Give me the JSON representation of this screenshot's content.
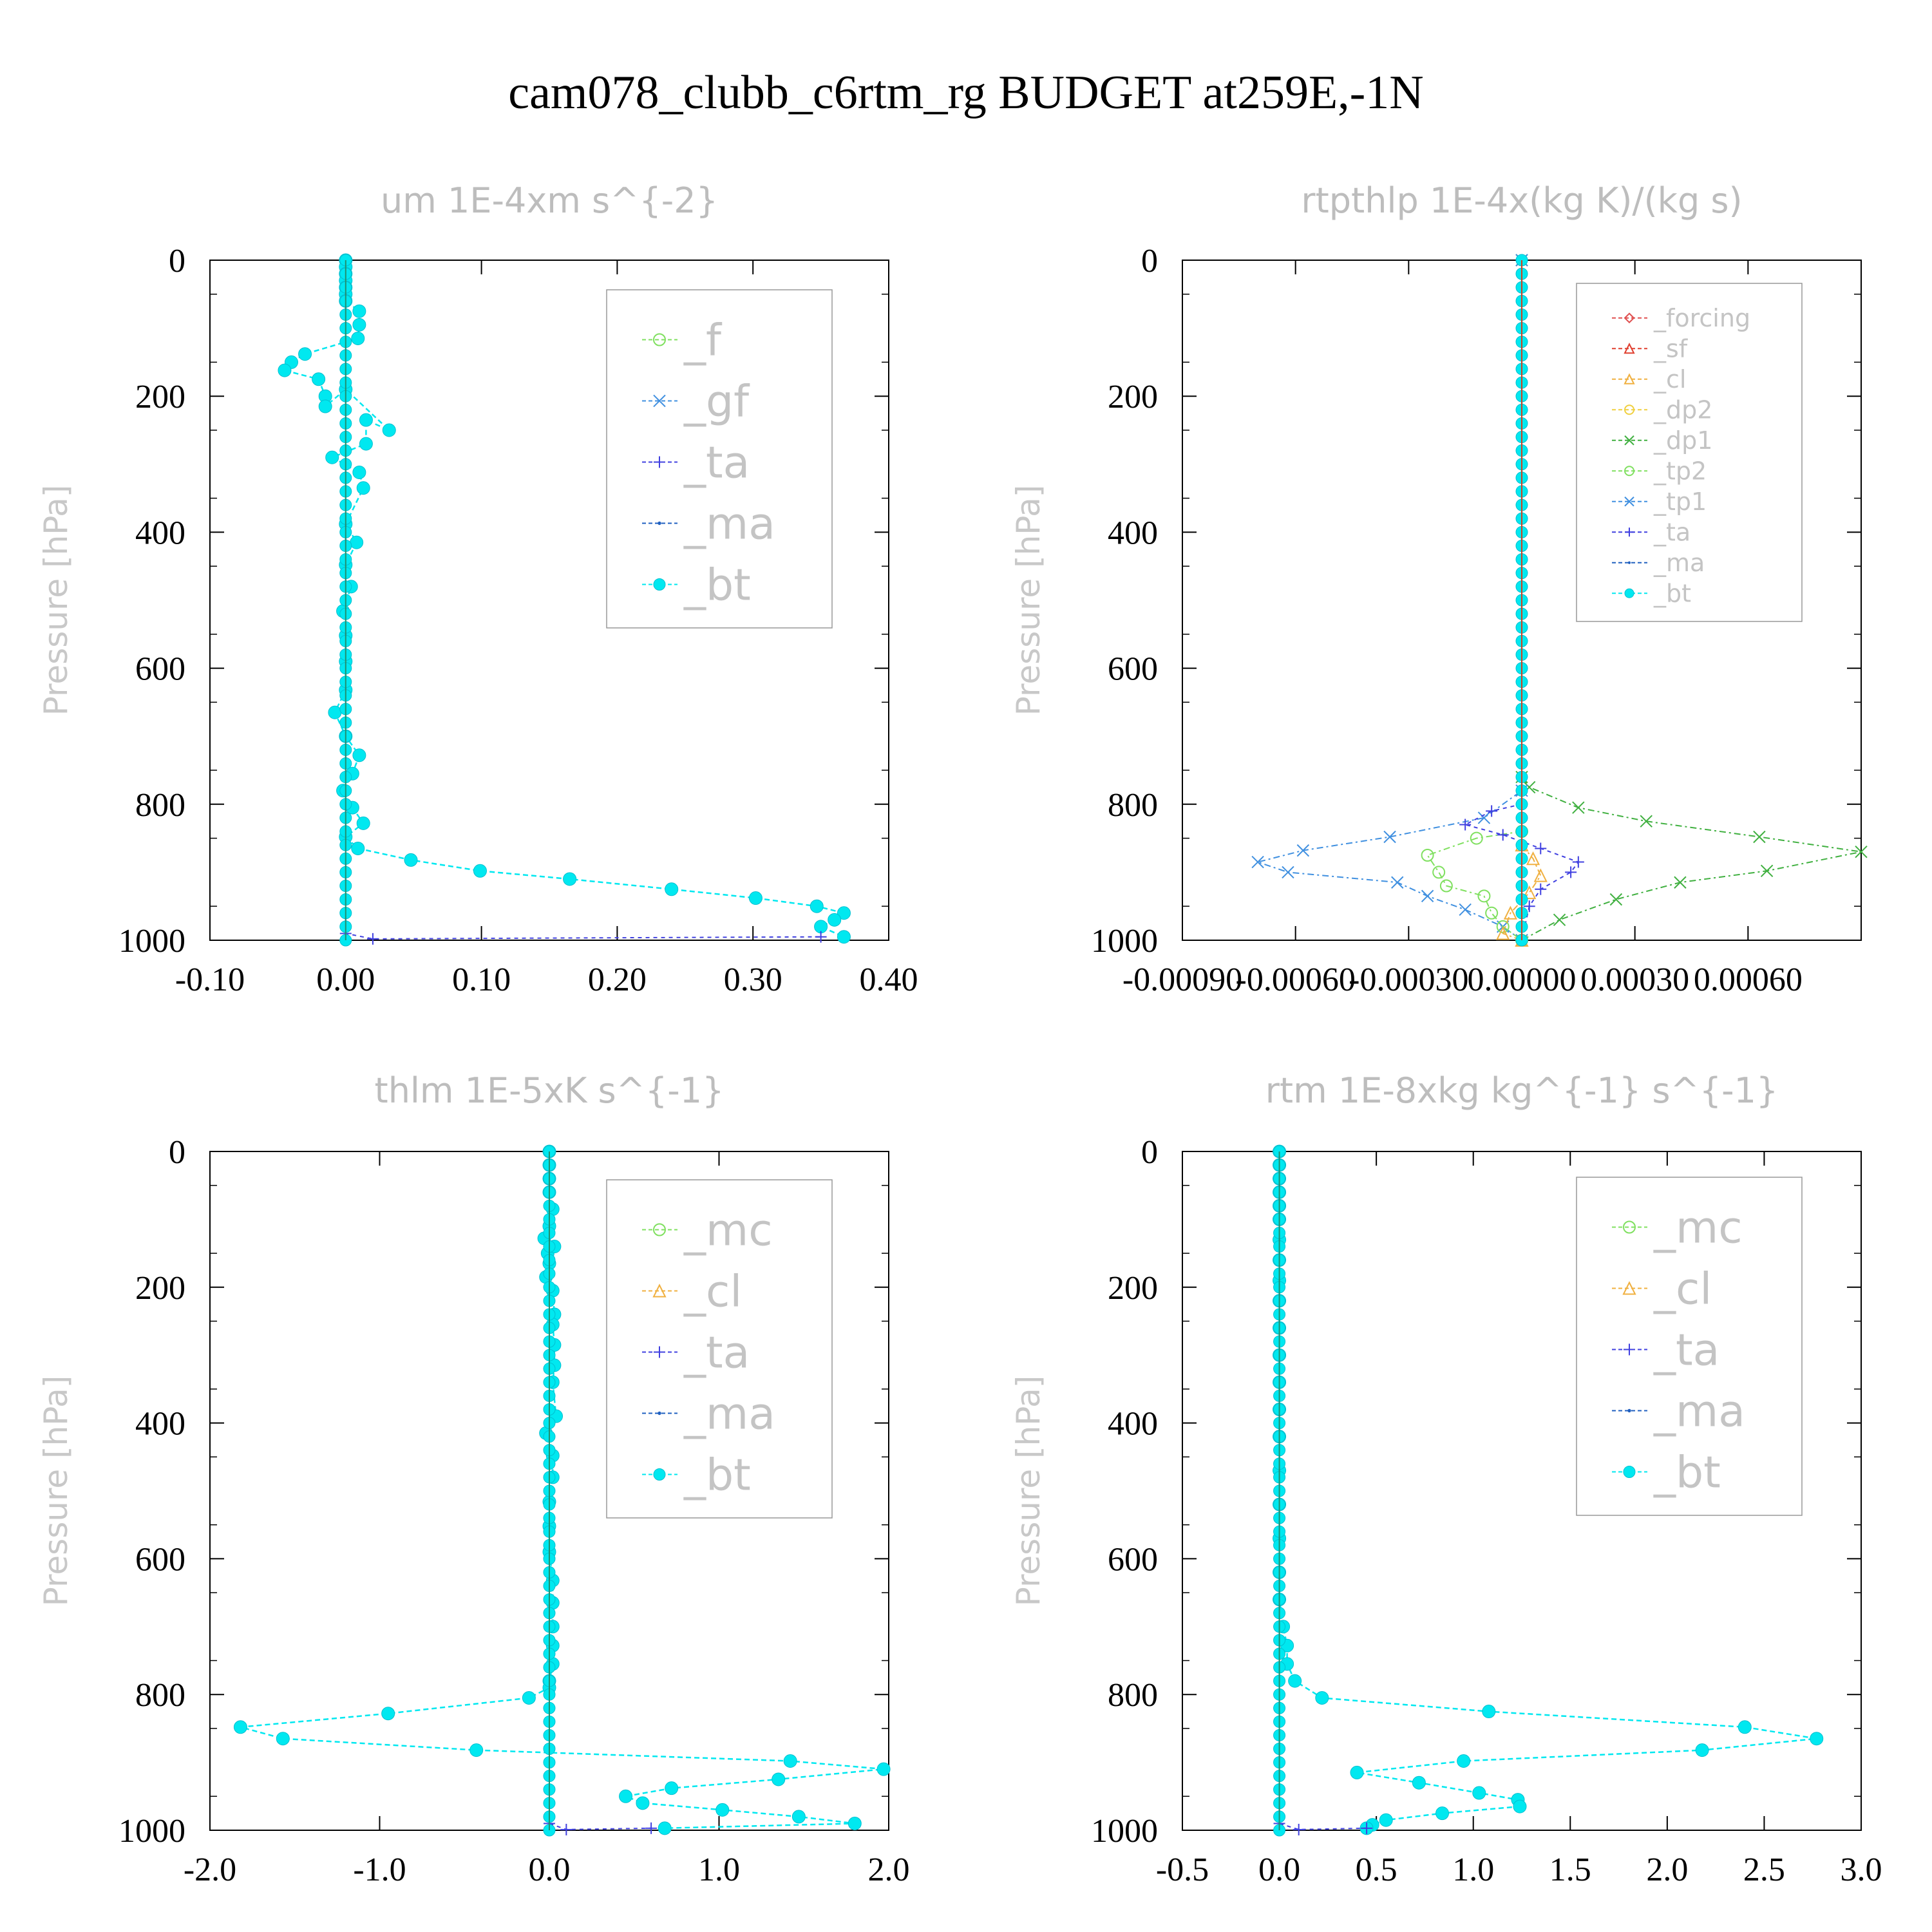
{
  "title": "cam078_clubb_c6rtm_rg  BUDGET at259E,-1N",
  "colors": {
    "forcing": "#e05050",
    "sf": "#e04030",
    "cl": "#f0b040",
    "dp2": "#f0d040",
    "dp1": "#40b040",
    "tp2": "#80e060",
    "tp1": "#4090e0",
    "ta": "#4040e0",
    "ma": "#2060c0",
    "bt": "#00e8f0",
    "f": "#80e060",
    "gf": "#4090e0",
    "mc": "#80e060"
  },
  "chart_data": [
    {
      "type": "line",
      "title": "um  1E-4xm s^{-2}",
      "ylabel": "Pressure [hPa]",
      "xlim": [
        -0.1,
        0.4
      ],
      "ylim": [
        1000,
        0
      ],
      "x_ticks": [
        "-0.10",
        "0.00",
        "0.10",
        "0.20",
        "0.30",
        "0.40"
      ],
      "y_ticks": [
        "0",
        "200",
        "400",
        "600",
        "800",
        "1000"
      ],
      "legend": [
        "_f",
        "_gf",
        "_ta",
        "_ma",
        "_bt"
      ],
      "legend_font": 68,
      "series": [
        {
          "name": "_bt",
          "key": "bt",
          "x": [
            0.0,
            0.0,
            0.0,
            0.0,
            0.0,
            0.0,
            0.0,
            0.01,
            0.01,
            0.009,
            -0.03,
            -0.04,
            -0.045,
            -0.02,
            -0.015,
            -0.015,
            0.0,
            0.032,
            0.015,
            0.015,
            -0.01,
            0.01,
            0.013,
            0.0,
            0.008,
            0.0,
            0.004,
            -0.002,
            0.0,
            0.0,
            0.0,
            -0.008,
            0.0,
            0.01,
            0.005,
            -0.002,
            0.005,
            0.013,
            0.0,
            0.009,
            0.048,
            0.099,
            0.165,
            0.24,
            0.302,
            0.347,
            0.367,
            0.36,
            0.35,
            0.367
          ],
          "y": [
            0,
            10,
            20,
            30,
            40,
            50,
            60,
            75,
            95,
            115,
            138,
            150,
            162,
            175,
            200,
            215,
            190,
            250,
            235,
            270,
            290,
            312,
            335,
            388,
            415,
            448,
            480,
            516,
            552,
            590,
            632,
            665,
            700,
            728,
            755,
            780,
            805,
            828,
            848,
            865,
            882,
            898,
            910,
            925,
            938,
            950,
            960,
            970,
            980,
            995
          ]
        },
        {
          "name": "_f",
          "key": "f",
          "x": [
            0.0,
            0.0
          ],
          "y": [
            0,
            1000
          ]
        },
        {
          "name": "_ta",
          "key": "ta",
          "x": [
            0.0,
            0.0,
            0.02,
            0.35
          ],
          "y": [
            0,
            990,
            998,
            995
          ]
        }
      ]
    },
    {
      "type": "line",
      "title": "rtpthlp  1E-4x(kg K)/(kg s)",
      "ylabel": "Pressure [hPa]",
      "xlim": [
        -0.0009,
        0.0009
      ],
      "ylim": [
        1000,
        0
      ],
      "x_ticks": [
        "-0.00090",
        "-0.00060",
        "-0.00030",
        "0.00000",
        "0.00030",
        "0.00060"
      ],
      "y_ticks": [
        "0",
        "200",
        "400",
        "600",
        "800",
        "1000"
      ],
      "legend": [
        "_forcing",
        "_sf",
        "_cl",
        "_dp2",
        "_dp1",
        "_tp2",
        "_tp1",
        "_ta",
        "_ma",
        "_bt"
      ],
      "legend_font": 38,
      "series": [
        {
          "name": "_dp1",
          "key": "dp1",
          "x": [
            0.0,
            0.0,
            2e-05,
            0.00015,
            0.00033,
            0.00063,
            0.0009,
            0.00065,
            0.00042,
            0.00025,
            0.0001,
            0.0
          ],
          "y": [
            0,
            760,
            775,
            805,
            825,
            848,
            870,
            898,
            915,
            940,
            970,
            1000
          ]
        },
        {
          "name": "_tp1",
          "key": "tp1",
          "x": [
            0.0,
            0.0,
            -0.0001,
            -0.00035,
            -0.00058,
            -0.0007,
            -0.00062,
            -0.00033,
            -0.00025,
            -0.00015,
            -5e-05,
            0.0
          ],
          "y": [
            0,
            780,
            820,
            848,
            868,
            885,
            900,
            915,
            935,
            955,
            980,
            1000
          ]
        },
        {
          "name": "_tp2",
          "key": "tp2",
          "x": [
            0.0,
            -0.00012,
            -0.00025,
            -0.00022,
            -0.0002,
            -0.0001,
            -8e-05,
            -5e-05,
            0.0
          ],
          "y": [
            840,
            850,
            875,
            900,
            920,
            935,
            960,
            980,
            1000
          ]
        },
        {
          "name": "_ta",
          "key": "ta",
          "x": [
            0.0,
            -8e-05,
            -0.00015,
            -5e-05,
            5e-05,
            0.00015,
            0.00013,
            5e-05,
            2e-05,
            0.0
          ],
          "y": [
            800,
            810,
            830,
            845,
            865,
            885,
            900,
            925,
            950,
            1000
          ]
        },
        {
          "name": "_cl",
          "key": "cl",
          "x": [
            0.0,
            3e-05,
            5e-05,
            2e-05,
            -3e-05,
            -5e-05,
            0.0
          ],
          "y": [
            860,
            880,
            905,
            930,
            960,
            990,
            1000
          ]
        },
        {
          "name": "_bt",
          "key": "bt",
          "x": [
            0.0,
            0.0
          ],
          "y": [
            0,
            1000
          ]
        }
      ]
    },
    {
      "type": "line",
      "title": "thlm  1E-5xK s^{-1}",
      "ylabel": "Pressure [hPa]",
      "xlim": [
        -2.0,
        2.0
      ],
      "ylim": [
        1000,
        0
      ],
      "x_ticks": [
        "-2.0",
        "-1.0",
        "0.0",
        "1.0",
        "2.0"
      ],
      "y_ticks": [
        "0",
        "200",
        "400",
        "600",
        "800",
        "1000"
      ],
      "legend": [
        "_mc",
        "_cl",
        "_ta",
        "_ma",
        "_bt"
      ],
      "legend_font": 68,
      "series": [
        {
          "name": "_bt",
          "key": "bt",
          "x": [
            0.0,
            0.0,
            0.0,
            0.0,
            0.02,
            0.0,
            -0.03,
            -0.01,
            0.03,
            0.0,
            -0.02,
            0.02,
            0.03,
            0.02,
            0.03,
            0.03,
            0.02,
            0.04,
            -0.02,
            0.02,
            0.02,
            0.0,
            0.0,
            0.0,
            0.02,
            0.02,
            0.02,
            0.02,
            0.02,
            0.0,
            0.0,
            -0.12,
            -0.95,
            -1.82,
            -1.57,
            -0.43,
            1.42,
            1.97,
            1.35,
            0.72,
            0.45,
            0.55,
            1.02,
            1.47,
            1.8,
            0.68
          ],
          "y": [
            0,
            20,
            40,
            60,
            85,
            110,
            128,
            150,
            140,
            165,
            185,
            205,
            240,
            255,
            285,
            315,
            340,
            390,
            415,
            448,
            480,
            516,
            552,
            590,
            632,
            665,
            700,
            728,
            755,
            780,
            790,
            805,
            828,
            848,
            865,
            882,
            898,
            910,
            925,
            938,
            950,
            960,
            970,
            980,
            990,
            997
          ]
        },
        {
          "name": "_mc",
          "key": "mc",
          "x": [
            0.0,
            0.0
          ],
          "y": [
            0,
            1000
          ]
        },
        {
          "name": "_ta",
          "key": "ta",
          "x": [
            0.0,
            0.0,
            0.1,
            0.6
          ],
          "y": [
            0,
            990,
            999,
            997
          ]
        }
      ]
    },
    {
      "type": "line",
      "title": "rtm  1E-8xkg kg^{-1} s^{-1}",
      "ylabel": "Pressure [hPa]",
      "xlim": [
        -0.5,
        3.0
      ],
      "ylim": [
        1000,
        0
      ],
      "x_ticks": [
        "-0.5",
        "0.0",
        "0.5",
        "1.0",
        "1.5",
        "2.0",
        "2.5",
        "3.0"
      ],
      "y_ticks": [
        "0",
        "200",
        "400",
        "600",
        "800",
        "1000"
      ],
      "legend": [
        "_mc",
        "_cl",
        "_ta",
        "_ma",
        "_bt"
      ],
      "legend_font": 68,
      "series": [
        {
          "name": "_bt",
          "key": "bt",
          "x": [
            0.0,
            0.0,
            0.0,
            0.0,
            0.0,
            0.0,
            0.0,
            0.0,
            0.0,
            0.0,
            0.0,
            0.0,
            0.0,
            0.0,
            0.0,
            0.0,
            0.0,
            0.0,
            0.0,
            0.0,
            0.02,
            0.04,
            0.04,
            0.08,
            0.22,
            1.08,
            2.4,
            2.77,
            2.18,
            0.95,
            0.4,
            0.72,
            1.03,
            1.23,
            1.24,
            0.84,
            0.55,
            0.48,
            0.45
          ],
          "y": [
            0,
            20,
            40,
            60,
            80,
            100,
            130,
            160,
            190,
            220,
            260,
            300,
            340,
            380,
            420,
            470,
            520,
            570,
            620,
            660,
            700,
            728,
            755,
            780,
            805,
            825,
            848,
            865,
            882,
            898,
            915,
            930,
            945,
            955,
            965,
            975,
            985,
            992,
            997
          ]
        },
        {
          "name": "_mc",
          "key": "mc",
          "x": [
            0.0,
            0.0
          ],
          "y": [
            0,
            1000
          ]
        },
        {
          "name": "_ta",
          "key": "ta",
          "x": [
            0.0,
            0.0,
            0.1,
            0.45
          ],
          "y": [
            0,
            990,
            999,
            997
          ]
        }
      ]
    }
  ]
}
